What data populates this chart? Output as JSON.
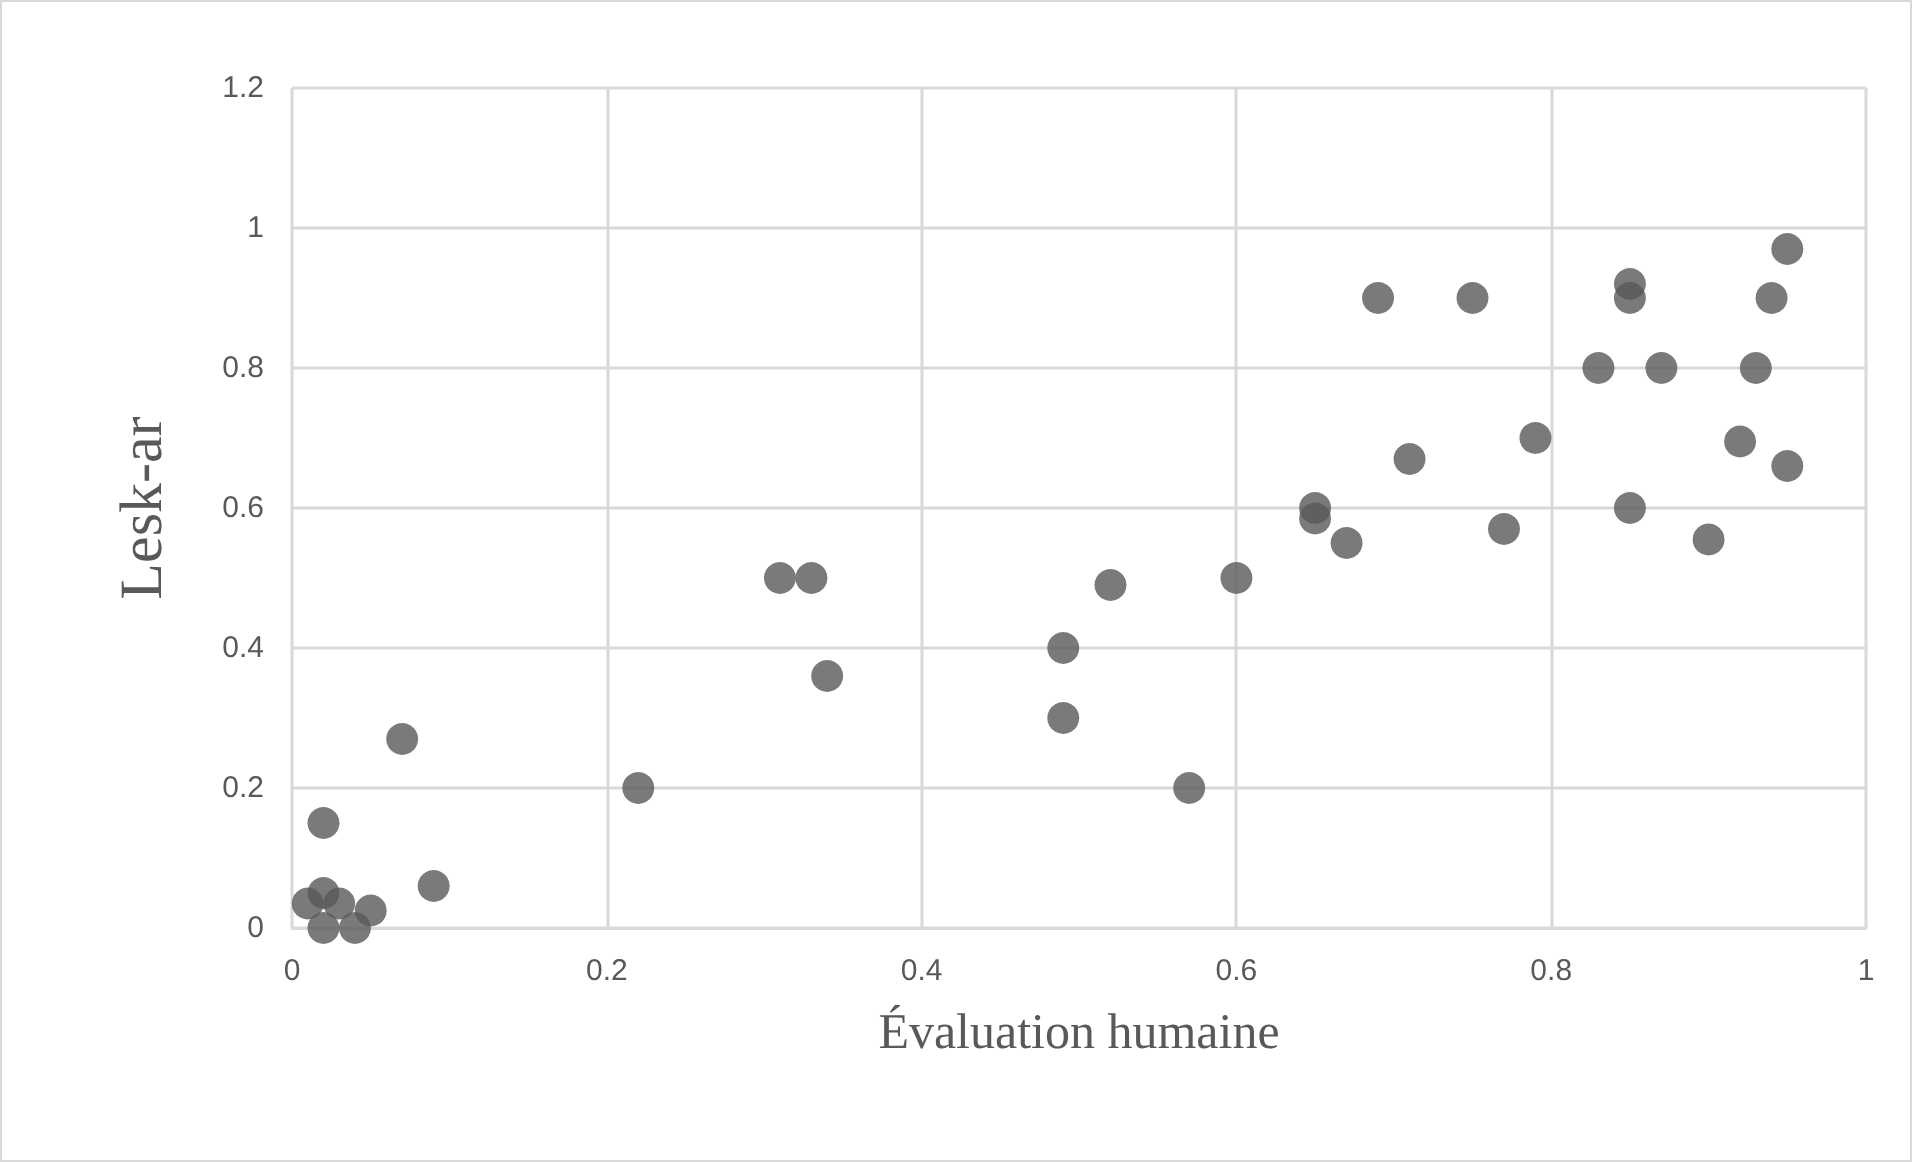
{
  "chart_data": {
    "type": "scatter",
    "xlabel": "Évaluation humaine",
    "ylabel": "Lesk-ar",
    "marker": "circle",
    "grid": true,
    "xlim": [
      0,
      1
    ],
    "xticks": [
      0,
      0.2,
      0.4,
      0.6,
      0.8,
      1
    ],
    "ylim": [
      0,
      1.2
    ],
    "yticks": [
      0,
      0.2,
      0.4,
      0.6,
      0.8,
      1,
      1.2
    ],
    "series": [
      {
        "color": "#595959",
        "x": [
          0.01,
          0.02,
          0.02,
          0.02,
          0.03,
          0.04,
          0.05,
          0.07,
          0.09,
          0.22,
          0.31,
          0.33,
          0.34,
          0.49,
          0.49,
          0.52,
          0.57,
          0.6,
          0.65,
          0.65,
          0.67,
          0.69,
          0.71,
          0.75,
          0.77,
          0.79,
          0.83,
          0.85,
          0.85,
          0.85,
          0.87,
          0.9,
          0.92,
          0.93,
          0.94,
          0.95,
          0.95
        ],
        "values": [
          0.035,
          0.15,
          0.05,
          0,
          0.035,
          0,
          0.025,
          0.27,
          0.06,
          0.2,
          0.5,
          0.5,
          0.36,
          0.4,
          0.3,
          0.49,
          0.2,
          0.5,
          0.6,
          0.585,
          0.55,
          0.9,
          0.67,
          0.9,
          0.57,
          0.7,
          0.8,
          0.92,
          0.9,
          0.6,
          0.8,
          0.555,
          0.695,
          0.8,
          0.9,
          0.97,
          0.66
        ]
      }
    ]
  }
}
